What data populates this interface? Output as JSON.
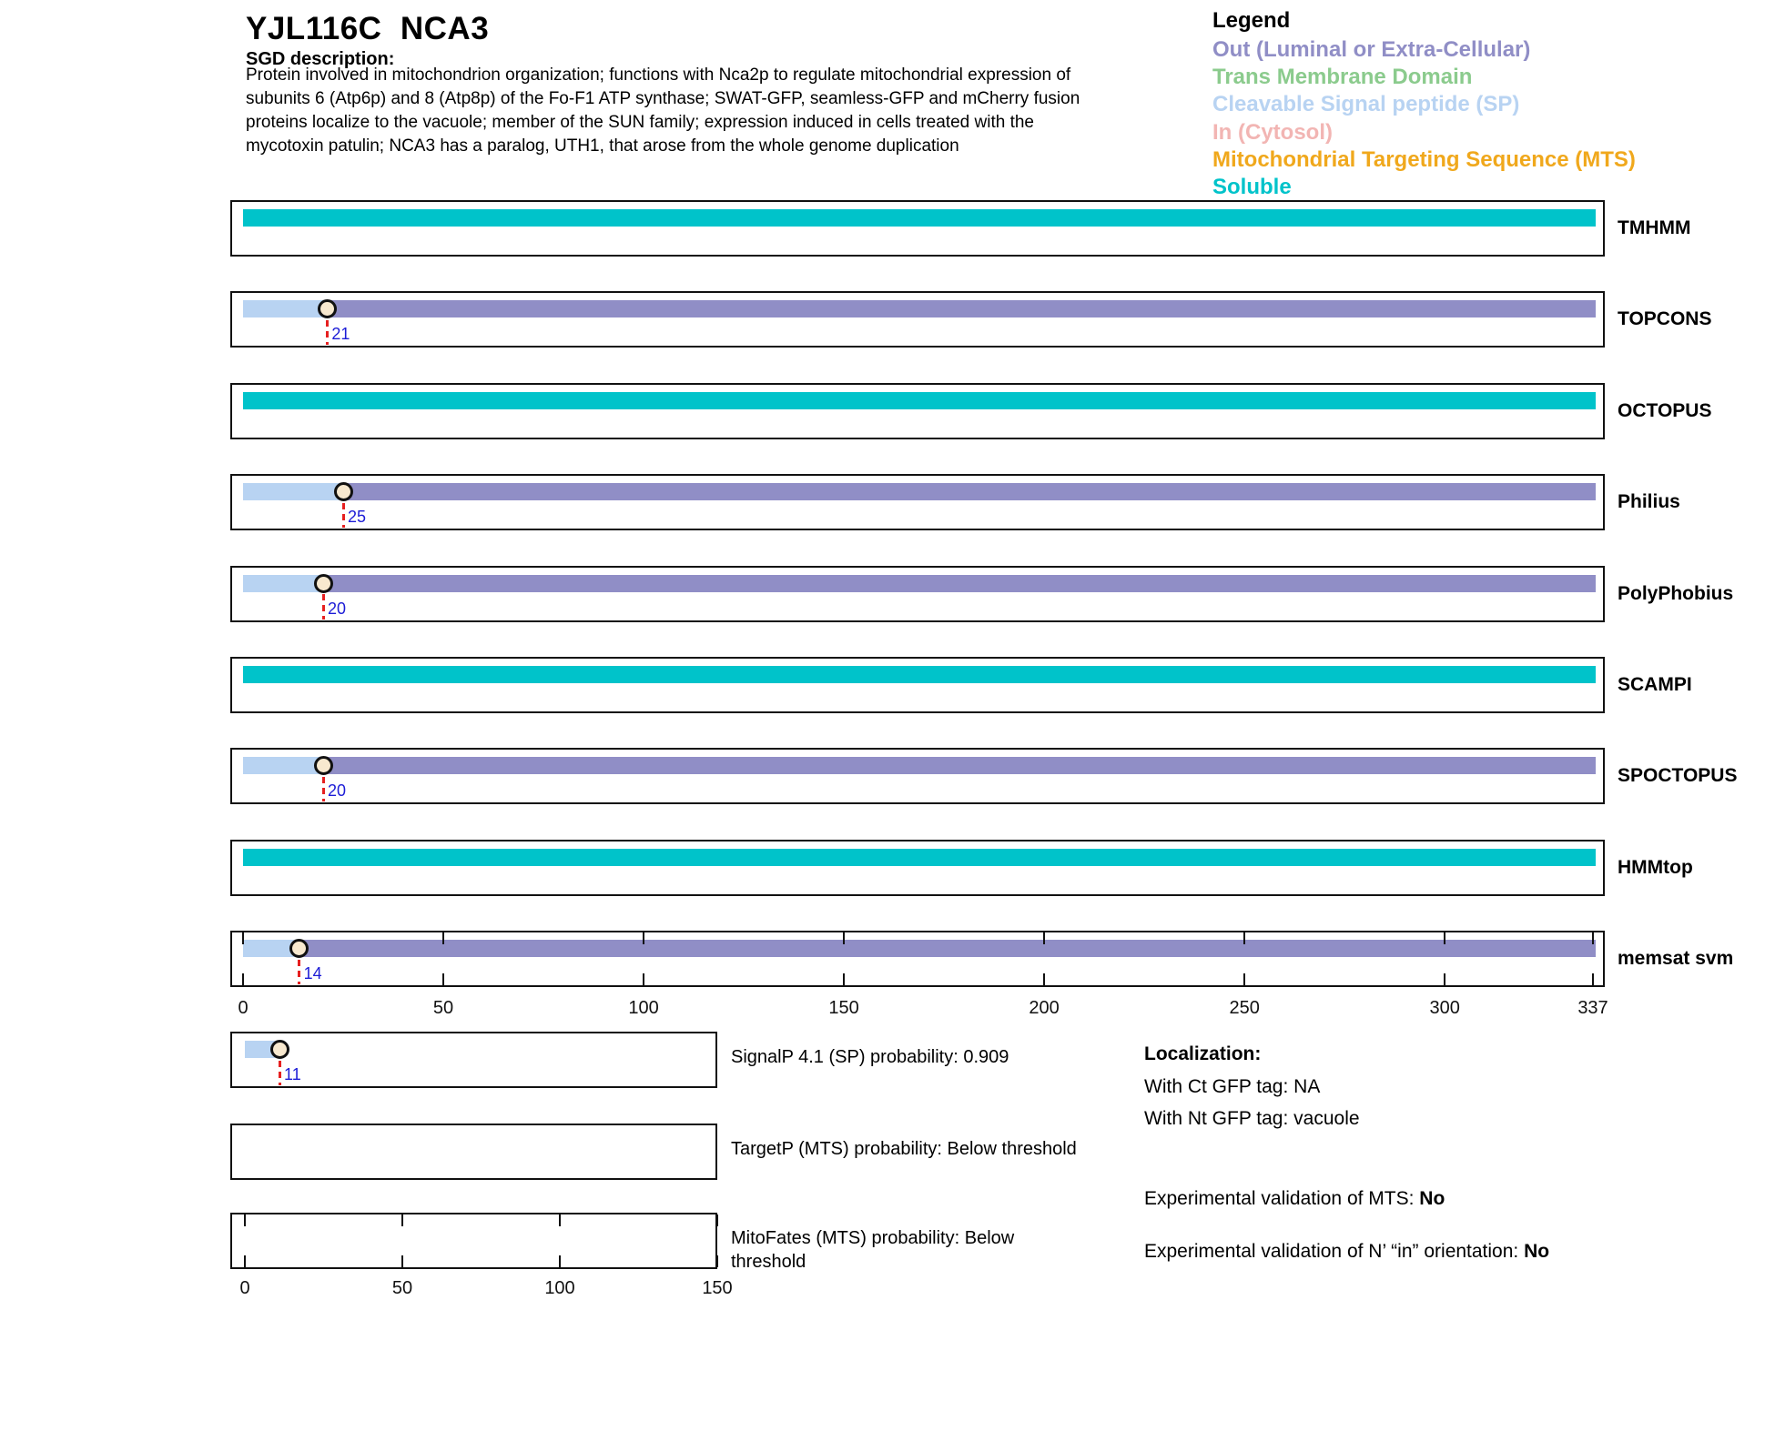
{
  "header": {
    "title": "YJL116C  NCA3",
    "sgd_label": "SGD description:",
    "description": "Protein involved in mitochondrion organization; functions with Nca2p to regulate mitochondrial expression of\nsubunits 6 (Atp6p) and 8 (Atp8p) of the Fo-F1 ATP synthase; SWAT-GFP, seamless-GFP and mCherry fusion\nproteins localize to the vacuole; member of the SUN family; expression induced in cells treated with the\nmycotoxin patulin; NCA3 has a paralog, UTH1, that arose from the whole genome duplication"
  },
  "legend": {
    "title": "Legend",
    "items": [
      {
        "label": "Out (Luminal or Extra-Cellular)",
        "color": "#908ec6"
      },
      {
        "label": "Trans Membrane Domain",
        "color": "#8bcb8d"
      },
      {
        "label": "Cleavable Signal peptide (SP)",
        "color": "#b8d3f2"
      },
      {
        "label": "In (Cytosol)",
        "color": "#f2b5b3"
      },
      {
        "label": "Mitochondrial Targeting Sequence (MTS)",
        "color": "#f0a81c"
      },
      {
        "label": "Soluble",
        "color": "#00c3ca"
      }
    ]
  },
  "chart_data": {
    "type": "span-tracks",
    "title": "Membrane topology predictions for YJL116C NCA3",
    "xlim": [
      0,
      337
    ],
    "axis_ticks": [
      0,
      50,
      100,
      150,
      200,
      250,
      300,
      337
    ],
    "segment_colors": {
      "soluble": "#00c3ca",
      "out": "#908ec6",
      "sp": "#b8d3f2"
    },
    "tracks": [
      {
        "label": "TMHMM",
        "segments": [
          {
            "type": "soluble",
            "start": 0,
            "end": 337
          }
        ],
        "cut_site": null
      },
      {
        "label": "TOPCONS",
        "segments": [
          {
            "type": "sp",
            "start": 0,
            "end": 21
          },
          {
            "type": "out",
            "start": 21,
            "end": 337
          }
        ],
        "cut_site": 21
      },
      {
        "label": "OCTOPUS",
        "segments": [
          {
            "type": "soluble",
            "start": 0,
            "end": 337
          }
        ],
        "cut_site": null
      },
      {
        "label": "Philius",
        "segments": [
          {
            "type": "sp",
            "start": 0,
            "end": 25
          },
          {
            "type": "out",
            "start": 25,
            "end": 337
          }
        ],
        "cut_site": 25
      },
      {
        "label": "PolyPhobius",
        "segments": [
          {
            "type": "sp",
            "start": 0,
            "end": 20
          },
          {
            "type": "out",
            "start": 20,
            "end": 337
          }
        ],
        "cut_site": 20
      },
      {
        "label": "SCAMPI",
        "segments": [
          {
            "type": "soluble",
            "start": 0,
            "end": 337
          }
        ],
        "cut_site": null
      },
      {
        "label": "SPOCTOPUS",
        "segments": [
          {
            "type": "sp",
            "start": 0,
            "end": 20
          },
          {
            "type": "out",
            "start": 20,
            "end": 337
          }
        ],
        "cut_site": 20
      },
      {
        "label": "HMMtop",
        "segments": [
          {
            "type": "soluble",
            "start": 0,
            "end": 337
          }
        ],
        "cut_site": null
      },
      {
        "label": "memsat svm",
        "segments": [
          {
            "type": "sp",
            "start": 0,
            "end": 14
          },
          {
            "type": "out",
            "start": 14,
            "end": 337
          }
        ],
        "cut_site": 14
      }
    ],
    "mini": {
      "xlim": [
        0,
        150
      ],
      "axis_ticks": [
        0,
        50,
        100,
        150
      ],
      "rows": [
        {
          "name": "SignalP",
          "label": "SignalP 4.1 (SP) probability: 0.909",
          "segments": [
            {
              "type": "sp",
              "start": 0,
              "end": 11
            }
          ],
          "cut_site": 11
        },
        {
          "name": "TargetP",
          "label": "TargetP (MTS) probability: Below threshold",
          "segments": [],
          "cut_site": null
        },
        {
          "name": "MitoFates",
          "label": "MitoFates (MTS) probability: Below threshold",
          "segments": [],
          "cut_site": null
        }
      ]
    }
  },
  "localization": {
    "title": "Localization:",
    "ct": "With Ct GFP tag: NA",
    "nt": "With Nt GFP tag: vacuole",
    "mts_label": "Experimental validation of MTS: ",
    "mts_value": "No",
    "orient_label": "Experimental validation of N’ “in” orientation: ",
    "orient_value": "No"
  }
}
